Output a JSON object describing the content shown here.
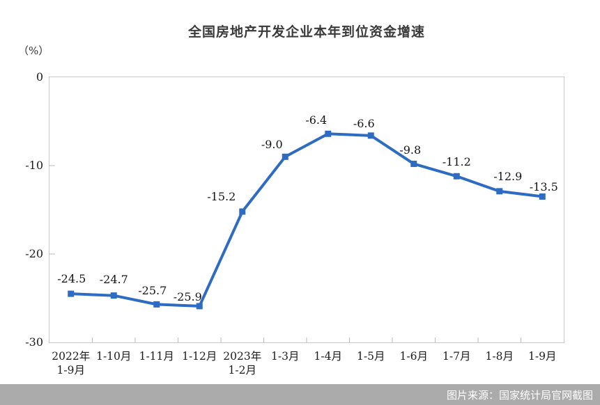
{
  "chart_data": {
    "type": "line",
    "title": "全国房地产开发企业本年到位资金增速",
    "ylabel": "（%）",
    "categories": [
      "2022年\n1-9月",
      "1-10月",
      "1-11月",
      "1-12月",
      "2023年\n1-2月",
      "1-3月",
      "1-4月",
      "1-5月",
      "1-6月",
      "1-7月",
      "1-8月",
      "1-9月"
    ],
    "values": [
      -24.5,
      -24.7,
      -25.7,
      -25.9,
      -15.2,
      -9.0,
      -6.4,
      -6.6,
      -9.8,
      -11.2,
      -12.9,
      -13.5
    ],
    "ylim": [
      -30,
      0
    ],
    "yticks": [
      0,
      -10,
      -20,
      -30
    ],
    "grid": false,
    "legend": null,
    "line_color": "#2e6bc2",
    "marker": "square",
    "axis_border_color": "#c6c6c6"
  },
  "source_note": "图片来源：国家统计局官网截图"
}
